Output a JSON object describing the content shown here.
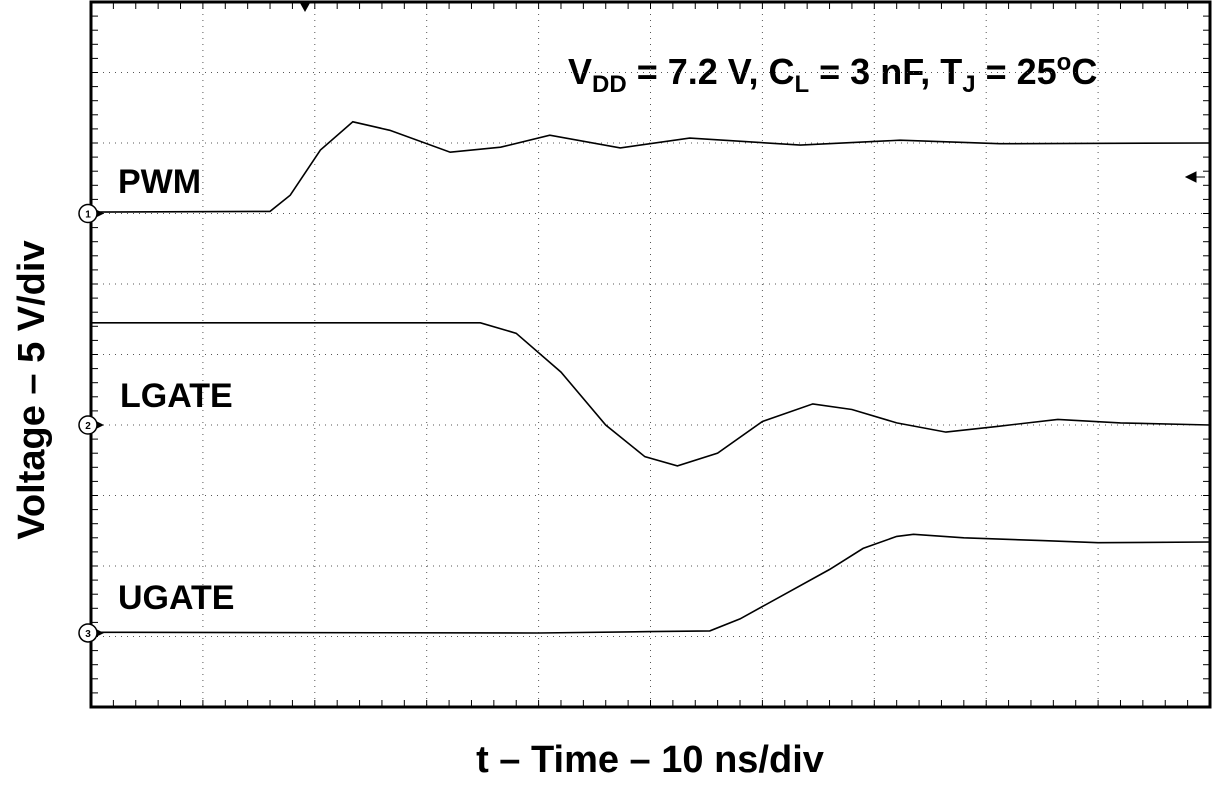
{
  "chart_data": {
    "type": "line",
    "annotation_parts": [
      {
        "text": "V"
      },
      {
        "text": "DD",
        "sub": true
      },
      {
        "text": " = 7.2 V, C"
      },
      {
        "text": "L",
        "sub": true
      },
      {
        "text": " = 3 nF, T"
      },
      {
        "text": "J",
        "sub": true
      },
      {
        "text": " = 25"
      },
      {
        "text": "o",
        "sup": true
      },
      {
        "text": "C"
      }
    ],
    "x_label": "t –  Time – 10 ns/div",
    "y_label": "Voltage – 5 V/div",
    "xlim": [
      0,
      100
    ],
    "ylim": [
      0,
      10
    ],
    "xdivisions": 10,
    "ydivisions": 10,
    "grid": true,
    "series": [
      {
        "name": "PWM",
        "color": "#000000",
        "ref_label": "1",
        "ref_level": 7.0,
        "x": [
          0,
          16,
          17.8,
          20.5,
          23.4,
          26.7,
          32.1,
          36.6,
          41,
          47.3,
          53.5,
          63.4,
          72.3,
          81.2,
          100
        ],
        "values": [
          7.02,
          7.03,
          7.26,
          7.9,
          8.3,
          8.18,
          7.87,
          7.94,
          8.11,
          7.93,
          8.07,
          7.97,
          8.04,
          7.99,
          8.0
        ]
      },
      {
        "name": "LGATE",
        "color": "#000000",
        "ref_label": "2",
        "ref_level": 4.0,
        "x": [
          0,
          34.8,
          38,
          42,
          46,
          49.5,
          52.4,
          56,
          60,
          64.5,
          68,
          72,
          76.4,
          81,
          86.4,
          92,
          100
        ],
        "values": [
          5.45,
          5.45,
          5.3,
          4.75,
          4.0,
          3.55,
          3.42,
          3.6,
          4.05,
          4.3,
          4.22,
          4.03,
          3.9,
          3.98,
          4.08,
          4.03,
          4.0
        ]
      },
      {
        "name": "UGATE",
        "color": "#000000",
        "ref_label": "3",
        "ref_level": 1.05,
        "x": [
          0,
          40,
          50,
          55.3,
          58,
          62,
          66,
          69,
          72,
          73.5,
          78,
          85,
          90,
          100
        ],
        "values": [
          1.06,
          1.05,
          1.07,
          1.08,
          1.25,
          1.6,
          1.95,
          2.25,
          2.42,
          2.45,
          2.4,
          2.36,
          2.33,
          2.34
        ]
      }
    ]
  }
}
